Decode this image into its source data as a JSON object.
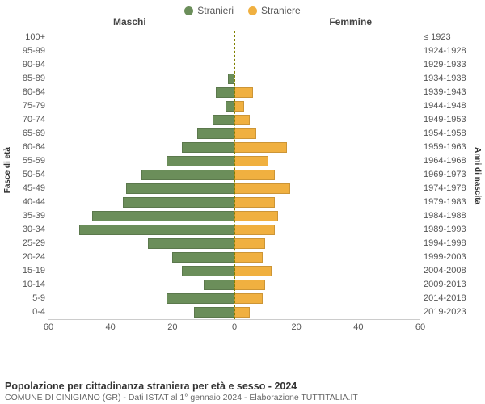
{
  "legend": {
    "male": {
      "label": "Stranieri",
      "color": "#6b8e5a"
    },
    "female": {
      "label": "Straniere",
      "color": "#f0b040"
    }
  },
  "headers": {
    "male": "Maschi",
    "female": "Femmine"
  },
  "y_axis_left_title": "Fasce di età",
  "y_axis_right_title": "Anni di nascita",
  "x_axis": {
    "ticks": [
      60,
      40,
      20,
      0,
      20,
      40,
      60
    ],
    "max": 60
  },
  "title": "Popolazione per cittadinanza straniera per età e sesso - 2024",
  "subtitle": "COMUNE DI CINIGIANO (GR) - Dati ISTAT al 1° gennaio 2024 - Elaborazione TUTTITALIA.IT",
  "colors": {
    "male_bar": "#6b8e5a",
    "female_bar": "#f0b040",
    "background": "#ffffff"
  },
  "rows": [
    {
      "age": "100+",
      "birth": "≤ 1923",
      "male": 0,
      "female": 0
    },
    {
      "age": "95-99",
      "birth": "1924-1928",
      "male": 0,
      "female": 0
    },
    {
      "age": "90-94",
      "birth": "1929-1933",
      "male": 0,
      "female": 0
    },
    {
      "age": "85-89",
      "birth": "1934-1938",
      "male": 2,
      "female": 0
    },
    {
      "age": "80-84",
      "birth": "1939-1943",
      "male": 6,
      "female": 6
    },
    {
      "age": "75-79",
      "birth": "1944-1948",
      "male": 3,
      "female": 3
    },
    {
      "age": "70-74",
      "birth": "1949-1953",
      "male": 7,
      "female": 5
    },
    {
      "age": "65-69",
      "birth": "1954-1958",
      "male": 12,
      "female": 7
    },
    {
      "age": "60-64",
      "birth": "1959-1963",
      "male": 17,
      "female": 17
    },
    {
      "age": "55-59",
      "birth": "1964-1968",
      "male": 22,
      "female": 11
    },
    {
      "age": "50-54",
      "birth": "1969-1973",
      "male": 30,
      "female": 13
    },
    {
      "age": "45-49",
      "birth": "1974-1978",
      "male": 35,
      "female": 18
    },
    {
      "age": "40-44",
      "birth": "1979-1983",
      "male": 36,
      "female": 13
    },
    {
      "age": "35-39",
      "birth": "1984-1988",
      "male": 46,
      "female": 14
    },
    {
      "age": "30-34",
      "birth": "1989-1993",
      "male": 50,
      "female": 13
    },
    {
      "age": "25-29",
      "birth": "1994-1998",
      "male": 28,
      "female": 10
    },
    {
      "age": "20-24",
      "birth": "1999-2003",
      "male": 20,
      "female": 9
    },
    {
      "age": "15-19",
      "birth": "2004-2008",
      "male": 17,
      "female": 12
    },
    {
      "age": "10-14",
      "birth": "2009-2013",
      "male": 10,
      "female": 10
    },
    {
      "age": "5-9",
      "birth": "2014-2018",
      "male": 22,
      "female": 9
    },
    {
      "age": "0-4",
      "birth": "2019-2023",
      "male": 13,
      "female": 5
    }
  ]
}
